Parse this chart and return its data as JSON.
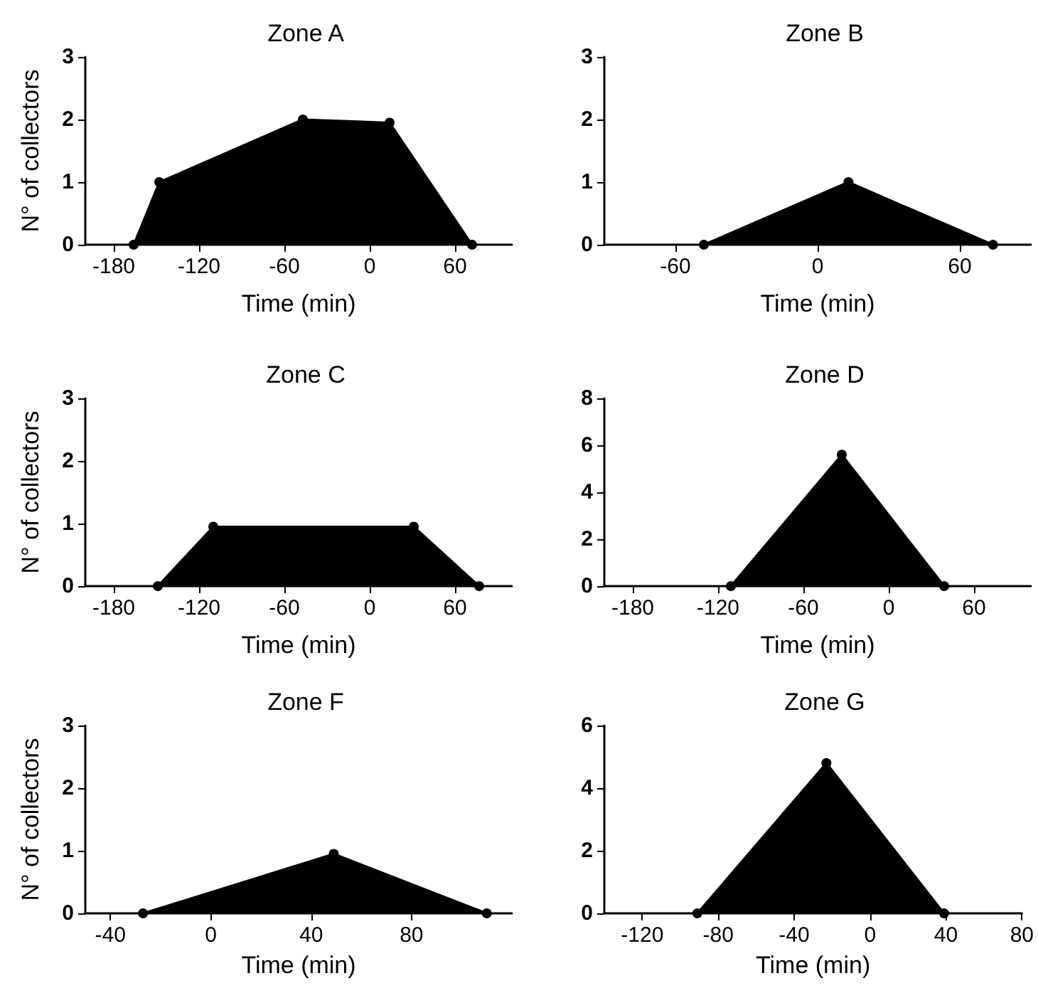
{
  "chart_data": [
    {
      "type": "area",
      "title": "Zone A",
      "xlabel": "Time (min)",
      "ylabel": "N° of collectors",
      "x": [
        -166,
        -148,
        -47,
        14,
        72
      ],
      "values": [
        0,
        1,
        2,
        1.95,
        0
      ],
      "color": "#000000",
      "marker": "circle",
      "xlim": [
        -200,
        100
      ],
      "xticks": [
        -180,
        -120,
        -60,
        0,
        60
      ],
      "ylim": [
        0,
        3
      ],
      "yticks": [
        0,
        1,
        2,
        3
      ],
      "grid": false
    },
    {
      "type": "area",
      "title": "Zone B",
      "xlabel": "Time (min)",
      "x": [
        -48,
        13,
        74
      ],
      "values": [
        0,
        1,
        0
      ],
      "color": "#000000",
      "marker": "circle",
      "xlim": [
        -90,
        90
      ],
      "xticks": [
        -60,
        0,
        60
      ],
      "ylim": [
        0,
        3
      ],
      "yticks": [
        0,
        1,
        2,
        3
      ],
      "grid": false
    },
    {
      "type": "area",
      "title": "Zone C",
      "xlabel": "Time (min)",
      "ylabel": "N° of collectors",
      "x": [
        -149,
        -110,
        31,
        77
      ],
      "values": [
        0,
        0.95,
        0.95,
        0
      ],
      "color": "#000000",
      "marker": "circle",
      "xlim": [
        -200,
        100
      ],
      "xticks": [
        -180,
        -120,
        -60,
        0,
        60
      ],
      "ylim": [
        0,
        3
      ],
      "yticks": [
        0,
        1,
        2,
        3
      ],
      "grid": false
    },
    {
      "type": "area",
      "title": "Zone D",
      "xlabel": "Time (min)",
      "x": [
        -111,
        -33,
        39
      ],
      "values": [
        0,
        5.6,
        0
      ],
      "color": "#000000",
      "marker": "circle",
      "xlim": [
        -200,
        100
      ],
      "xticks": [
        -180,
        -120,
        -60,
        0,
        60
      ],
      "ylim": [
        0,
        8
      ],
      "yticks": [
        0,
        2,
        4,
        6,
        8
      ],
      "grid": false
    },
    {
      "type": "area",
      "title": "Zone F",
      "xlabel": "Time (min)",
      "ylabel": "N° of collectors",
      "x": [
        -27,
        49,
        110
      ],
      "values": [
        0,
        0.95,
        0
      ],
      "color": "#000000",
      "marker": "circle",
      "xlim": [
        -50,
        120
      ],
      "xticks": [
        -40,
        0,
        40,
        80
      ],
      "ylim": [
        0,
        3
      ],
      "yticks": [
        0,
        1,
        2,
        3
      ],
      "grid": false
    },
    {
      "type": "area",
      "title": "Zone G",
      "xlabel": "Time (min)",
      "x": [
        -91,
        -23,
        39
      ],
      "values": [
        0,
        4.8,
        0
      ],
      "color": "#000000",
      "marker": "circle",
      "xlim": [
        -140,
        80
      ],
      "xticks": [
        -120,
        -80,
        -40,
        0,
        40,
        80
      ],
      "ylim": [
        0,
        6
      ],
      "yticks": [
        0,
        2,
        4,
        6
      ],
      "grid": false
    }
  ]
}
